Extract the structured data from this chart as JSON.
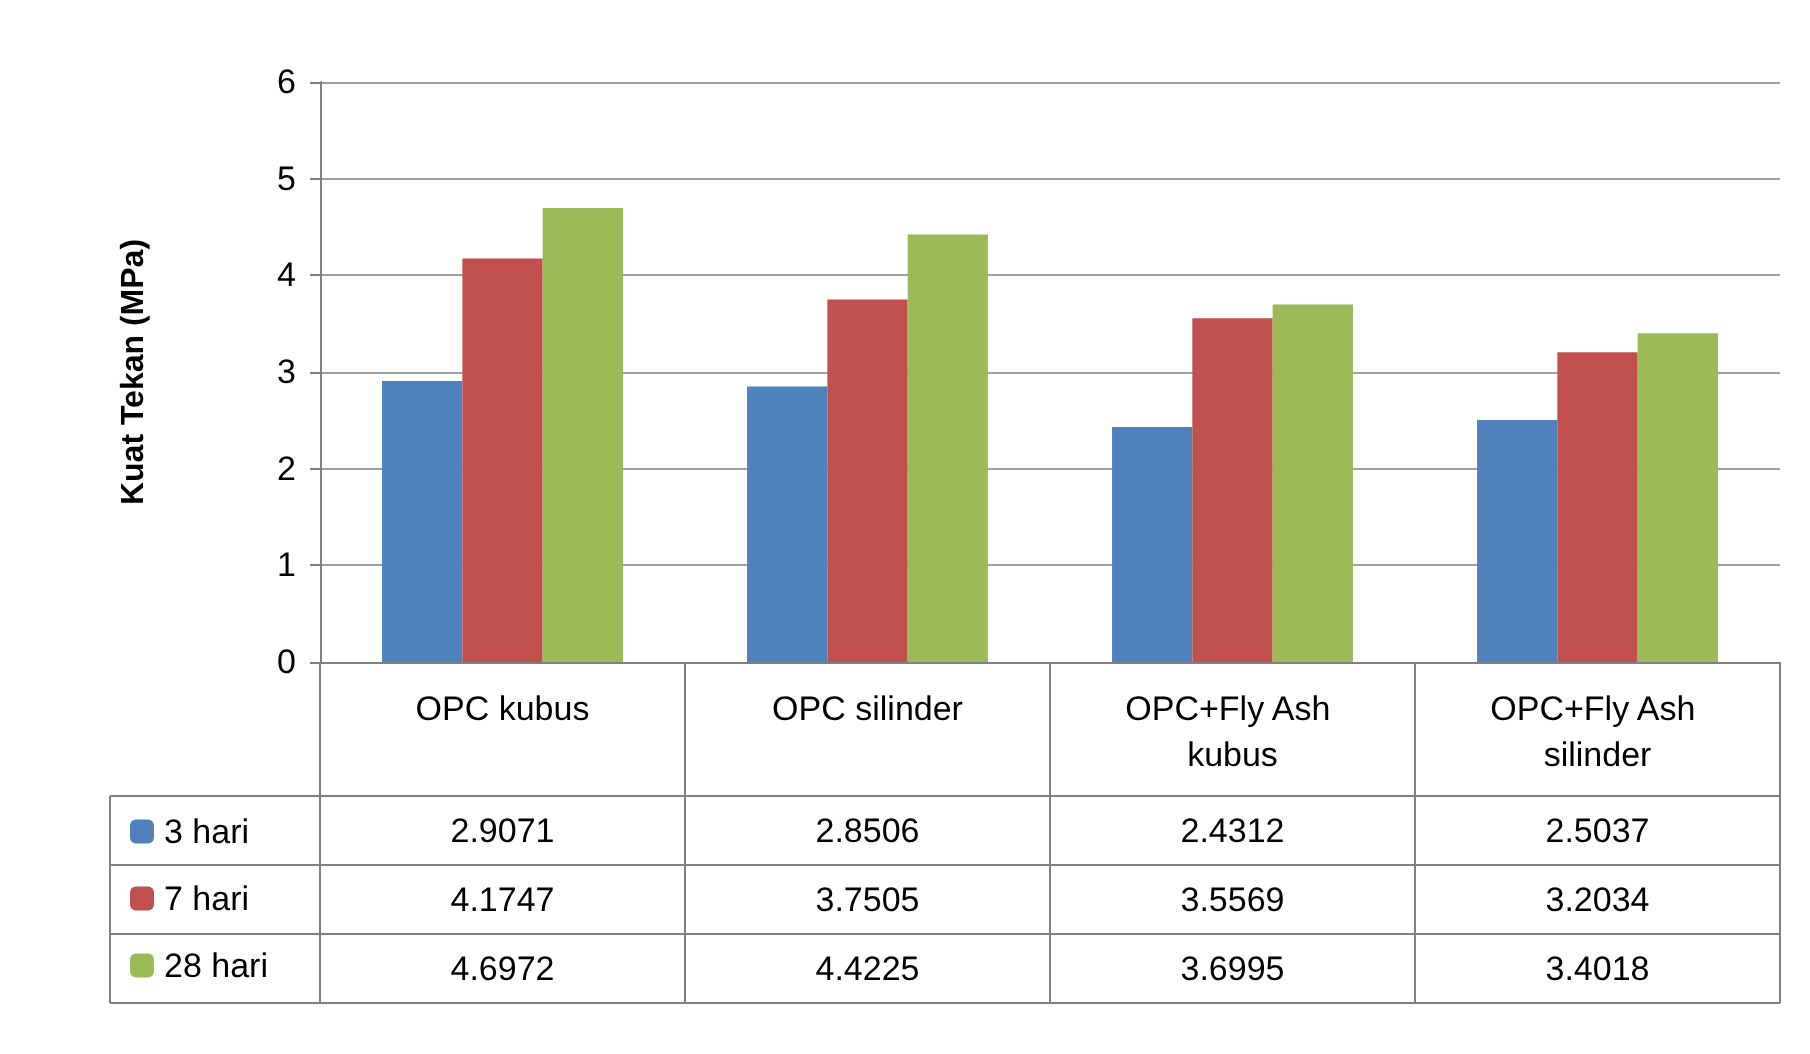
{
  "chart_data": {
    "type": "bar",
    "ylabel": "Kuat Tekan (MPa)",
    "categories": [
      "OPC kubus",
      "OPC silinder",
      "OPC+Fly Ash kubus",
      "OPC+Fly Ash silinder"
    ],
    "series": [
      {
        "name": "3 hari",
        "color": "#4f81bd",
        "values": [
          2.9071,
          2.8506,
          2.4312,
          2.5037
        ]
      },
      {
        "name": "7 hari",
        "color": "#c0504d",
        "values": [
          4.1747,
          3.7505,
          3.5569,
          3.2034
        ]
      },
      {
        "name": "28 hari",
        "color": "#9bbb59",
        "values": [
          4.6972,
          4.4225,
          3.6995,
          3.4018
        ]
      }
    ],
    "ylim": [
      0,
      6
    ],
    "yticks": [
      0,
      1,
      2,
      3,
      4,
      5,
      6
    ],
    "grid": true,
    "legend": "bottom",
    "data_labels": true
  }
}
